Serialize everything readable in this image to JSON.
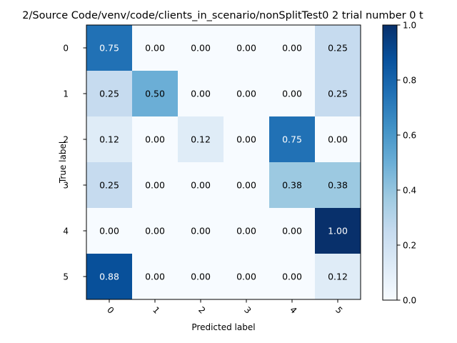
{
  "chart_data": {
    "type": "heatmap",
    "title": "2/Source Code/venv/code/clients_in_scenario/nonSplitTest0 2 trial number 0 t",
    "xlabel": "Predicted label",
    "ylabel": "True label",
    "x_tick_labels": [
      "0",
      "1",
      "2",
      "3",
      "4",
      "5"
    ],
    "y_tick_labels": [
      "0",
      "1",
      "2",
      "3",
      "4",
      "5"
    ],
    "matrix": [
      [
        0.75,
        0.0,
        0.0,
        0.0,
        0.0,
        0.25
      ],
      [
        0.25,
        0.5,
        0.0,
        0.0,
        0.0,
        0.25
      ],
      [
        0.12,
        0.0,
        0.12,
        0.0,
        0.75,
        0.0
      ],
      [
        0.25,
        0.0,
        0.0,
        0.0,
        0.38,
        0.38
      ],
      [
        0.0,
        0.0,
        0.0,
        0.0,
        0.0,
        1.0
      ],
      [
        0.88,
        0.0,
        0.0,
        0.0,
        0.0,
        0.12
      ]
    ],
    "cell_labels": [
      [
        "0.75",
        "0.00",
        "0.00",
        "0.00",
        "0.00",
        "0.25"
      ],
      [
        "0.25",
        "0.50",
        "0.00",
        "0.00",
        "0.00",
        "0.25"
      ],
      [
        "0.12",
        "0.00",
        "0.12",
        "0.00",
        "0.75",
        "0.00"
      ],
      [
        "0.25",
        "0.00",
        "0.00",
        "0.00",
        "0.38",
        "0.38"
      ],
      [
        "0.00",
        "0.00",
        "0.00",
        "0.00",
        "0.00",
        "1.00"
      ],
      [
        "0.88",
        "0.00",
        "0.00",
        "0.00",
        "0.00",
        "0.12"
      ]
    ],
    "colormap": "Blues",
    "colorbar": {
      "range": [
        0.0,
        1.0
      ],
      "ticks": [
        0.0,
        0.2,
        0.4,
        0.6,
        0.8,
        1.0
      ],
      "tick_labels": [
        "0.0",
        "0.2",
        "0.4",
        "0.6",
        "0.8",
        "1.0"
      ]
    },
    "x_tick_rotation": "45",
    "text_color_light": "#ffffff",
    "text_color_dark": "#000000"
  }
}
